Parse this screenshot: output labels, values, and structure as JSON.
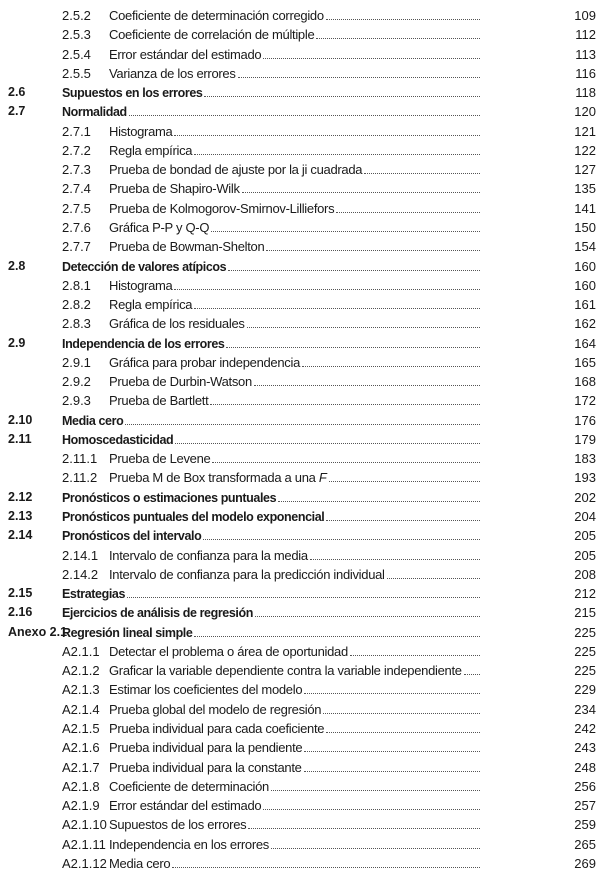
{
  "toc": [
    {
      "level": "sub",
      "number": "2.5.2",
      "title": "Coeficiente de determinación corregido",
      "page": "109"
    },
    {
      "level": "sub",
      "number": "2.5.3",
      "title": "Coeficiente de correlación de múltiple",
      "page": "112"
    },
    {
      "level": "sub",
      "number": "2.5.4",
      "title": "Error estándar del estimado",
      "page": "113"
    },
    {
      "level": "sub",
      "number": "2.5.5",
      "title": "Varianza de los errores",
      "page": "116"
    },
    {
      "level": "sec",
      "number": "2.6",
      "title": "Supuestos en los errores",
      "page": "118"
    },
    {
      "level": "sec",
      "number": "2.7",
      "title": "Normalidad",
      "page": "120"
    },
    {
      "level": "sub",
      "number": "2.7.1",
      "title": "Histograma",
      "page": "121"
    },
    {
      "level": "sub",
      "number": "2.7.2",
      "title": "Regla empírica",
      "page": "122"
    },
    {
      "level": "sub",
      "number": "2.7.3",
      "title": "Prueba de bondad de ajuste por la ji cuadrada",
      "page": "127"
    },
    {
      "level": "sub",
      "number": "2.7.4",
      "title": "Prueba de Shapiro-Wilk",
      "page": "135"
    },
    {
      "level": "sub",
      "number": "2.7.5",
      "title": "Prueba de Kolmogorov-Smirnov-Lilliefors",
      "page": "141"
    },
    {
      "level": "sub",
      "number": "2.7.6",
      "title": "Gráfica P-P y Q-Q",
      "page": "150"
    },
    {
      "level": "sub",
      "number": "2.7.7",
      "title": "Prueba de Bowman-Shelton",
      "page": "154"
    },
    {
      "level": "sec",
      "number": "2.8",
      "title": "Detección de valores atípicos",
      "page": "160"
    },
    {
      "level": "sub",
      "number": "2.8.1",
      "title": "Histograma",
      "page": "160"
    },
    {
      "level": "sub",
      "number": "2.8.2",
      "title": "Regla empírica",
      "page": "161"
    },
    {
      "level": "sub",
      "number": "2.8.3",
      "title": "Gráfica de los residuales",
      "page": "162"
    },
    {
      "level": "sec",
      "number": "2.9",
      "title": "Independencia de los errores",
      "page": "164"
    },
    {
      "level": "sub",
      "number": "2.9.1",
      "title": "Gráfica para probar independencia",
      "page": "165"
    },
    {
      "level": "sub",
      "number": "2.9.2",
      "title": "Prueba de Durbin-Watson",
      "page": "168"
    },
    {
      "level": "sub",
      "number": "2.9.3",
      "title": "Prueba de Bartlett",
      "page": "172"
    },
    {
      "level": "sec",
      "number": "2.10",
      "title": "Media cero",
      "page": "176"
    },
    {
      "level": "sec",
      "number": "2.11",
      "title": "Homoscedasticidad",
      "page": "179"
    },
    {
      "level": "sub",
      "number": "2.11.1",
      "title": "Prueba de Levene",
      "page": "183"
    },
    {
      "level": "sub",
      "number": "2.11.2",
      "title": "Prueba M de Box transformada a una F",
      "page": "193"
    },
    {
      "level": "sec",
      "number": "2.12",
      "title": "Pronósticos o estimaciones puntuales",
      "page": "202"
    },
    {
      "level": "sec",
      "number": "2.13",
      "title": "Pronósticos puntuales del modelo exponencial",
      "page": "204"
    },
    {
      "level": "sec",
      "number": "2.14",
      "title": "Pronósticos del intervalo",
      "page": "205"
    },
    {
      "level": "sub",
      "number": "2.14.1",
      "title": "Intervalo de confianza para la media",
      "page": "205"
    },
    {
      "level": "sub",
      "number": "2.14.2",
      "title": "Intervalo de confianza para la predicción individual",
      "page": "208"
    },
    {
      "level": "sec",
      "number": "2.15",
      "title": "Estrategias",
      "page": "212"
    },
    {
      "level": "sec",
      "number": "2.16",
      "title": "Ejercicios de análisis de regresión",
      "page": "215"
    },
    {
      "level": "sec",
      "number": "Anexo 2.1",
      "title": "Regresión lineal simple",
      "page": "225"
    },
    {
      "level": "sub",
      "number": "A2.1.1",
      "title": "Detectar el problema o área de oportunidad",
      "page": "225"
    },
    {
      "level": "sub",
      "number": "A2.1.2",
      "title": "Graficar la variable dependiente contra la variable independiente",
      "page": "225"
    },
    {
      "level": "sub",
      "number": "A2.1.3",
      "title": "Estimar los coeficientes del modelo",
      "page": "229"
    },
    {
      "level": "sub",
      "number": "A2.1.4",
      "title": "Prueba global del modelo de regresión",
      "page": "234"
    },
    {
      "level": "sub",
      "number": "A2.1.5",
      "title": "Prueba individual para cada coeficiente",
      "page": "242"
    },
    {
      "level": "sub",
      "number": "A2.1.6",
      "title": "Prueba individual para la pendiente",
      "page": "243"
    },
    {
      "level": "sub",
      "number": "A2.1.7",
      "title": "Prueba individual para la constante",
      "page": "248"
    },
    {
      "level": "sub",
      "number": "A2.1.8",
      "title": "Coeficiente de determinación",
      "page": "256"
    },
    {
      "level": "sub",
      "number": "A2.1.9",
      "title": "Error estándar del estimado",
      "page": "257"
    },
    {
      "level": "sub",
      "number": "A2.1.10",
      "title": "Supuestos de los errores",
      "page": "259"
    },
    {
      "level": "sub",
      "number": "A2.1.11",
      "title": "Independencia en los errores",
      "page": "265"
    },
    {
      "level": "sub",
      "number": "A2.1.12",
      "title": "Media cero",
      "page": "269"
    }
  ]
}
